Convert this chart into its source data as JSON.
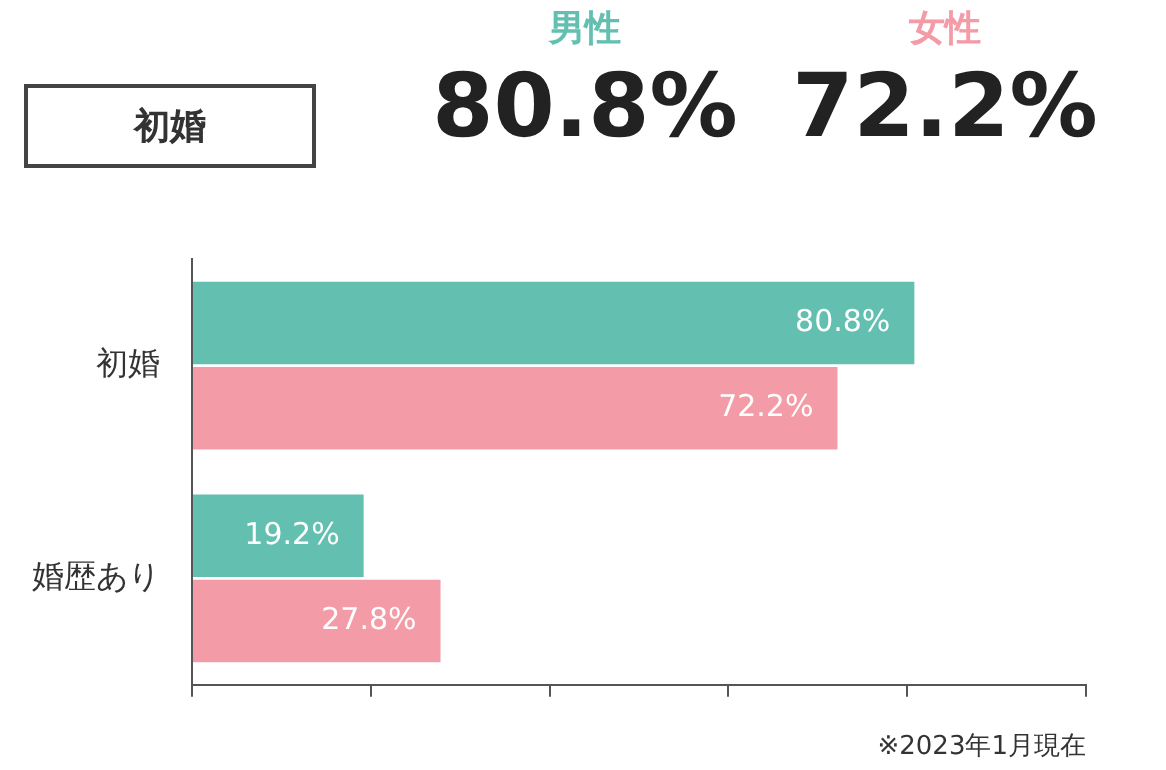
{
  "chart_data": {
    "type": "bar",
    "orientation": "horizontal",
    "title": "初婚",
    "categories": [
      "初婚",
      "婚歴あり"
    ],
    "series": [
      {
        "name": "男性",
        "color": "#63c0b1",
        "values": [
          80.8,
          19.2
        ],
        "value_labels": [
          "80.8%",
          "19.2%"
        ]
      },
      {
        "name": "女性",
        "color": "#f39ba6",
        "values": [
          72.2,
          27.8
        ],
        "value_labels": [
          "72.2%",
          "27.8%"
        ]
      }
    ],
    "xlim": [
      0,
      100
    ],
    "xticks": [
      {
        "value": 0,
        "label": null
      },
      {
        "value": 20,
        "label": null
      },
      {
        "value": 40,
        "label": null
      },
      {
        "value": 60,
        "label": null
      },
      {
        "value": 80,
        "label": null
      },
      {
        "value": 100,
        "label": null
      }
    ],
    "tick_labels": "y",
    "grid": false,
    "legend": "top right",
    "annotations": [
      "80.8%",
      "72.2%",
      "※2023年1月現在"
    ]
  }
}
